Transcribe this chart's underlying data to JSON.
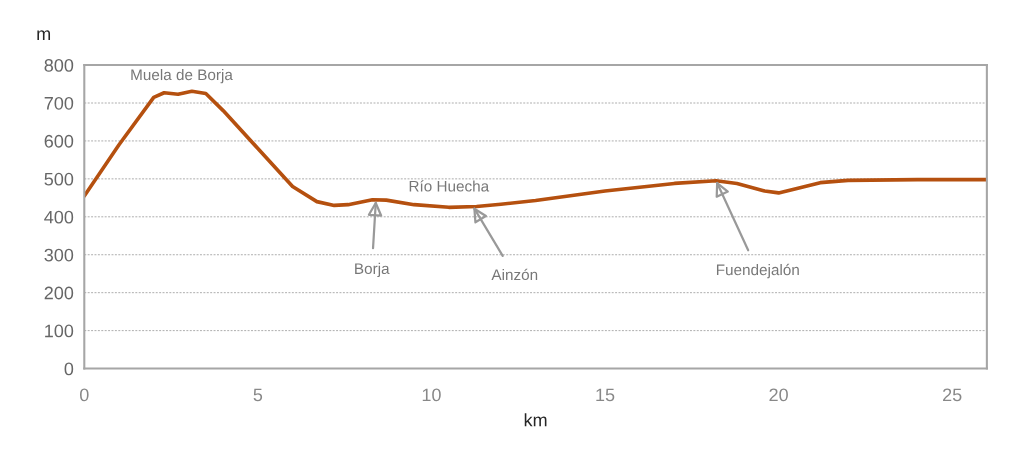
{
  "chart_data": {
    "type": "line",
    "xlabel": "km",
    "ylabel": "m",
    "x": [
      0,
      1,
      2,
      2.3,
      2.7,
      3.1,
      3.5,
      4,
      5,
      6,
      6.7,
      7.2,
      7.6,
      8.3,
      8.7,
      9.5,
      10.5,
      11.3,
      12,
      13,
      15,
      17,
      18.2,
      18.8,
      19.6,
      20,
      20.5,
      21.2,
      22,
      24,
      26
    ],
    "series": [
      {
        "color": "#b5500f",
        "values": [
          455,
          590,
          715,
          727,
          723,
          731,
          725,
          680,
          580,
          480,
          440,
          430,
          432,
          445,
          444,
          432,
          425,
          427,
          433,
          443,
          468,
          488,
          495,
          488,
          468,
          463,
          474,
          490,
          496,
          498,
          498
        ]
      }
    ],
    "xlim": [
      0,
      26
    ],
    "xticks": [
      0,
      5,
      10,
      15,
      20,
      25
    ],
    "ylim": [
      0,
      800
    ],
    "yticks": [
      0,
      100,
      200,
      300,
      400,
      500,
      600,
      700,
      800
    ],
    "grid": "y",
    "marker": "none",
    "line_style": "solid",
    "annotations": [
      {
        "text": "Muela de Borja",
        "x": 2.8,
        "y": 727
      },
      {
        "text": "Río Huecha",
        "x": 10.3,
        "y": 426
      },
      {
        "text": "Borja",
        "x": 8.4,
        "y": 443
      },
      {
        "text": "Ainzón",
        "x": 11.2,
        "y": 427
      },
      {
        "text": "Fuendejalón",
        "x": 18.2,
        "y": 495
      }
    ]
  }
}
